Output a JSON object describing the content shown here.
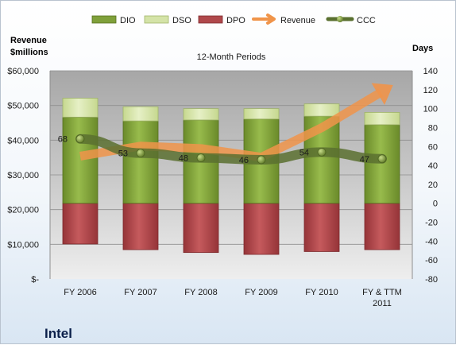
{
  "company_name": "Intel",
  "chart_data": {
    "type": "bar",
    "subtitle": "12-Month Periods",
    "left_axis_title": [
      "Revenue",
      "$millions"
    ],
    "right_axis_title": "Days",
    "categories": [
      "FY 2006",
      "FY 2007",
      "FY 2008",
      "FY 2009",
      "FY 2010",
      "FY & TTM 2011"
    ],
    "left_ylim": [
      0,
      60000
    ],
    "left_ticks": [
      0,
      10000,
      20000,
      30000,
      40000,
      50000,
      60000
    ],
    "left_tick_labels": [
      "$-",
      "$10,000",
      "$20,000",
      "$30,000",
      "$40,000",
      "$50,000",
      "$60,000"
    ],
    "right_ylim": [
      -80,
      140
    ],
    "right_ticks": [
      -80,
      -60,
      -40,
      -20,
      0,
      20,
      40,
      60,
      80,
      100,
      120,
      140
    ],
    "series": [
      {
        "name": "DIO",
        "axis": "right",
        "kind": "stacked-bar",
        "color": "#7fa03a",
        "values": [
          91,
          87,
          88,
          89,
          92,
          83
        ]
      },
      {
        "name": "DSO",
        "axis": "right",
        "kind": "stacked-bar",
        "color": "#d4e3a7",
        "values": [
          20,
          15,
          12,
          11,
          13,
          13
        ]
      },
      {
        "name": "DPO",
        "axis": "right",
        "kind": "negative-bar",
        "color": "#b0484b",
        "values": [
          43,
          49,
          52,
          54,
          51,
          49
        ]
      },
      {
        "name": "Revenue",
        "axis": "left",
        "kind": "arrow-line",
        "color": "#f0944a",
        "values": [
          35400,
          38300,
          37600,
          35100,
          43600,
          54000
        ]
      },
      {
        "name": "CCC",
        "axis": "right",
        "kind": "line-points",
        "color": "#5a7030",
        "values": [
          68,
          53,
          48,
          46,
          54,
          47
        ]
      }
    ],
    "ccc_labels": [
      "68",
      "53",
      "48",
      "46",
      "54",
      "47"
    ],
    "legend_position": "top",
    "grid": true
  }
}
